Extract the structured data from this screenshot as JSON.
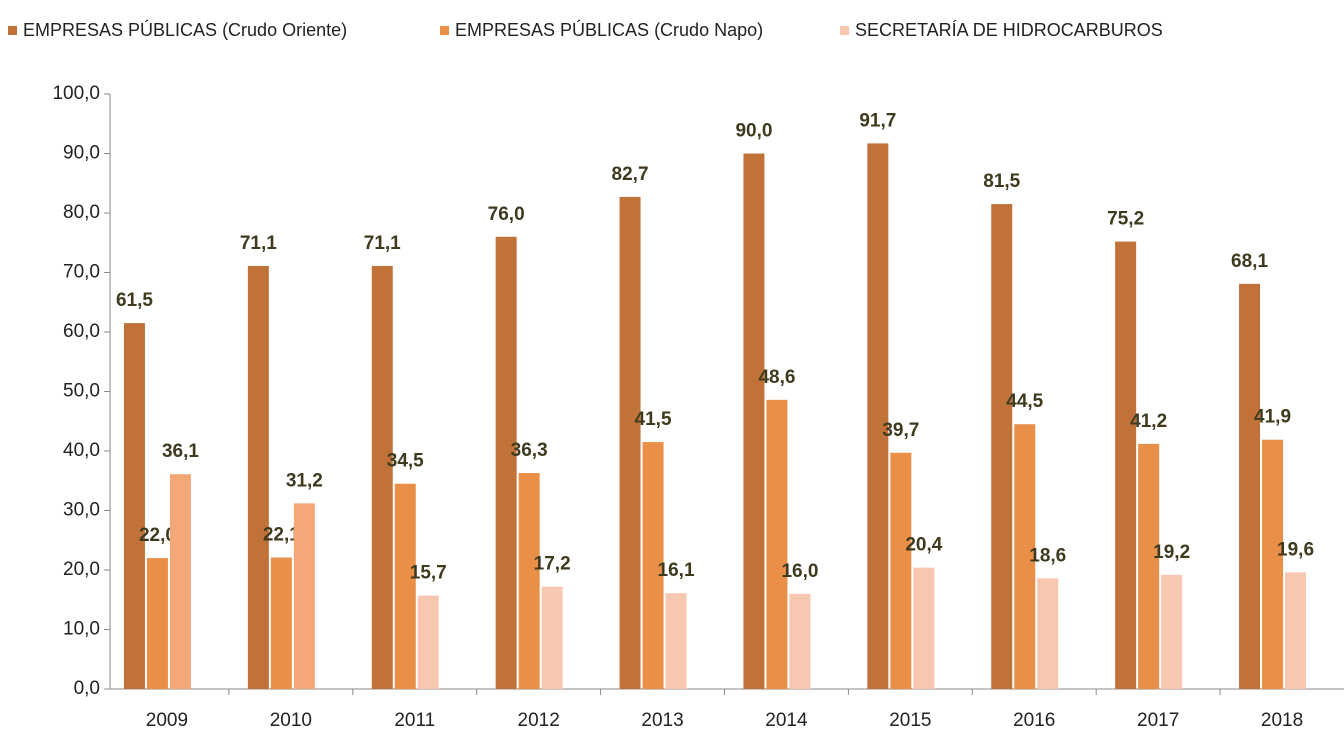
{
  "chart_data": {
    "type": "bar",
    "categories": [
      "2009",
      "2010",
      "2011",
      "2012",
      "2013",
      "2014",
      "2015",
      "2016",
      "2017",
      "2018"
    ],
    "series": [
      {
        "name": "EMPRESAS PÚBLICAS (Crudo Oriente)",
        "color": "#c17239",
        "values": [
          61.5,
          71.1,
          71.1,
          76.0,
          82.7,
          90.0,
          91.7,
          81.5,
          75.2,
          68.1
        ],
        "value_labels": [
          "61,5",
          "71,1",
          "71,1",
          "76,0",
          "82,7",
          "90,0",
          "91,7",
          "81,5",
          "75,2",
          "68,1"
        ]
      },
      {
        "name": "EMPRESAS PÚBLICAS (Crudo Napo)",
        "color": "#e98f47",
        "values": [
          22.0,
          22.1,
          34.5,
          36.3,
          41.5,
          48.6,
          39.7,
          44.5,
          41.2,
          41.9
        ],
        "value_labels": [
          "22,0",
          "22,1",
          "34,5",
          "36,3",
          "41,5",
          "48,6",
          "39,7",
          "44,5",
          "41,2",
          "41,9"
        ]
      },
      {
        "name": "SECRETARÍA DE HIDROCARBUROS",
        "color": "#f8c7b0",
        "colors": [
          "#f4a877",
          "#f4a877",
          "#f8c7b0",
          "#f8c7b0",
          "#f8c7b0",
          "#f8c7b0",
          "#f8c7b0",
          "#f8c7b0",
          "#f8c7b0",
          "#f8c7b0"
        ],
        "values": [
          36.1,
          31.2,
          15.7,
          17.2,
          16.1,
          16.0,
          20.4,
          18.6,
          19.2,
          19.6
        ],
        "value_labels": [
          "36,1",
          "31,2",
          "15,7",
          "17,2",
          "16,1",
          "16,0",
          "20,4",
          "18,6",
          "19,2",
          "19,6"
        ]
      }
    ],
    "ylim": [
      0,
      100
    ],
    "yticks": [
      {
        "value": 0,
        "label": "0,0"
      },
      {
        "value": 10,
        "label": "10,0"
      },
      {
        "value": 20,
        "label": "20,0"
      },
      {
        "value": 30,
        "label": "30,0"
      },
      {
        "value": 40,
        "label": "40,0"
      },
      {
        "value": 50,
        "label": "50,0"
      },
      {
        "value": 60,
        "label": "60,0"
      },
      {
        "value": 70,
        "label": "70,0"
      },
      {
        "value": 80,
        "label": "80,0"
      },
      {
        "value": 90,
        "label": "90,0"
      },
      {
        "value": 100,
        "label": "100,0"
      }
    ],
    "grid": false,
    "legend": "top"
  }
}
